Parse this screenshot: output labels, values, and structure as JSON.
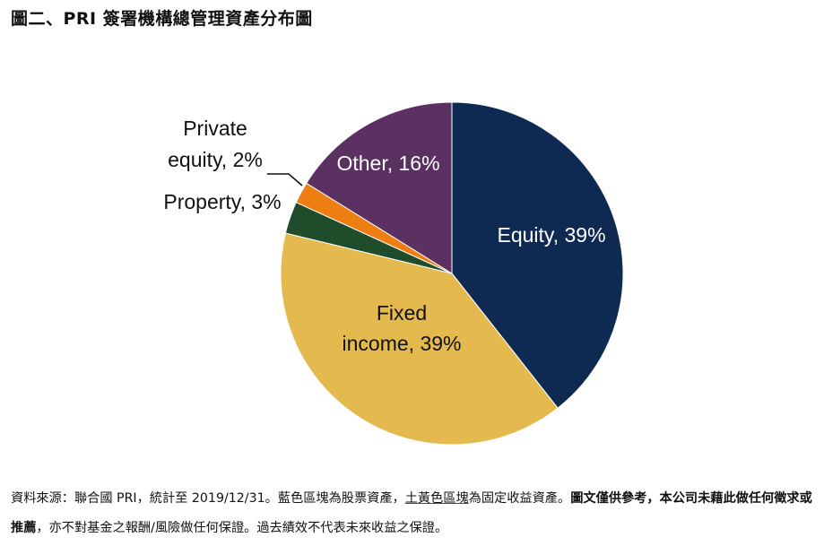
{
  "title": "圖二、PRI 簽署機構總管理資產分布圖",
  "chart_data": {
    "type": "pie",
    "slices": [
      {
        "label": "Equity, 39%",
        "value": 39,
        "color": "#0f2a52"
      },
      {
        "label": "Fixed income, 39%",
        "value": 39,
        "color": "#e4b94e"
      },
      {
        "label": "Property, 3%",
        "value": 3,
        "color": "#1f4d2b"
      },
      {
        "label": "Private equity, 2%",
        "value": 2,
        "color": "#ee7d12"
      },
      {
        "label": "Other, 16%",
        "value": 16,
        "color": "#5a3160"
      }
    ]
  },
  "source": {
    "part1": "資料來源：聯合國 PRI，統計至 2019/12/31。藍色區塊為股票資產，",
    "part2_underlined": "土黃色區塊",
    "part3": "為固定收益資產。",
    "part4_bold": "圖文僅供參考，本公司未藉此做任何徵求或推薦",
    "part5": "，亦不對基金之報酬/風險做任何保證。過去績效不代表未來收益之保證。"
  }
}
